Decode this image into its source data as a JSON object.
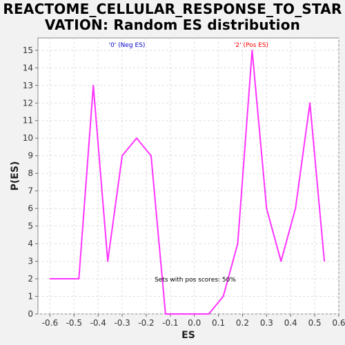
{
  "chart_data": {
    "type": "line",
    "title_line1": "REACTOME_CELLULAR_RESPONSE_TO_STAR",
    "title_line2": "VATION: Random ES distribution",
    "xlabel": "ES",
    "ylabel": "P(ES)",
    "xlim": [
      -0.65,
      0.6
    ],
    "ylim": [
      0,
      15.7
    ],
    "xticks": [
      -0.6,
      -0.5,
      -0.4,
      -0.3,
      -0.2,
      -0.1,
      0.0,
      0.1,
      0.2,
      0.3,
      0.4,
      0.5,
      0.6
    ],
    "xtick_labels": [
      "-0.6",
      "-0.5",
      "-0.4",
      "-0.3",
      "-0.2",
      "-0.1",
      "0.0",
      "0.1",
      "0.2",
      "0.3",
      "0.4",
      "0.5",
      "0.6"
    ],
    "yticks": [
      0,
      1,
      2,
      3,
      4,
      5,
      6,
      7,
      8,
      9,
      10,
      11,
      12,
      13,
      14,
      15
    ],
    "grid": true,
    "legend_neg": "'0' (Neg ES)",
    "legend_pos": "'2' (Pos ES)",
    "annotation": "Sets with pos scores: 50%",
    "series": [
      {
        "color": "#ff33ff",
        "x": [
          -0.6,
          -0.54,
          -0.48,
          -0.42,
          -0.36,
          -0.3,
          -0.24,
          -0.18,
          -0.12,
          -0.06,
          0.0,
          0.06,
          0.12,
          0.18,
          0.24,
          0.3,
          0.36,
          0.42,
          0.48,
          0.54
        ],
        "y": [
          2,
          2,
          2,
          13,
          3,
          9,
          10,
          9,
          0,
          0,
          0,
          0,
          1,
          4,
          15,
          6,
          3,
          6,
          12,
          3
        ]
      }
    ],
    "colors": {
      "neg": "#0000cc",
      "pos": "#ff0000",
      "plot_bg": "#ffffff",
      "grid": "#dddddd"
    }
  }
}
